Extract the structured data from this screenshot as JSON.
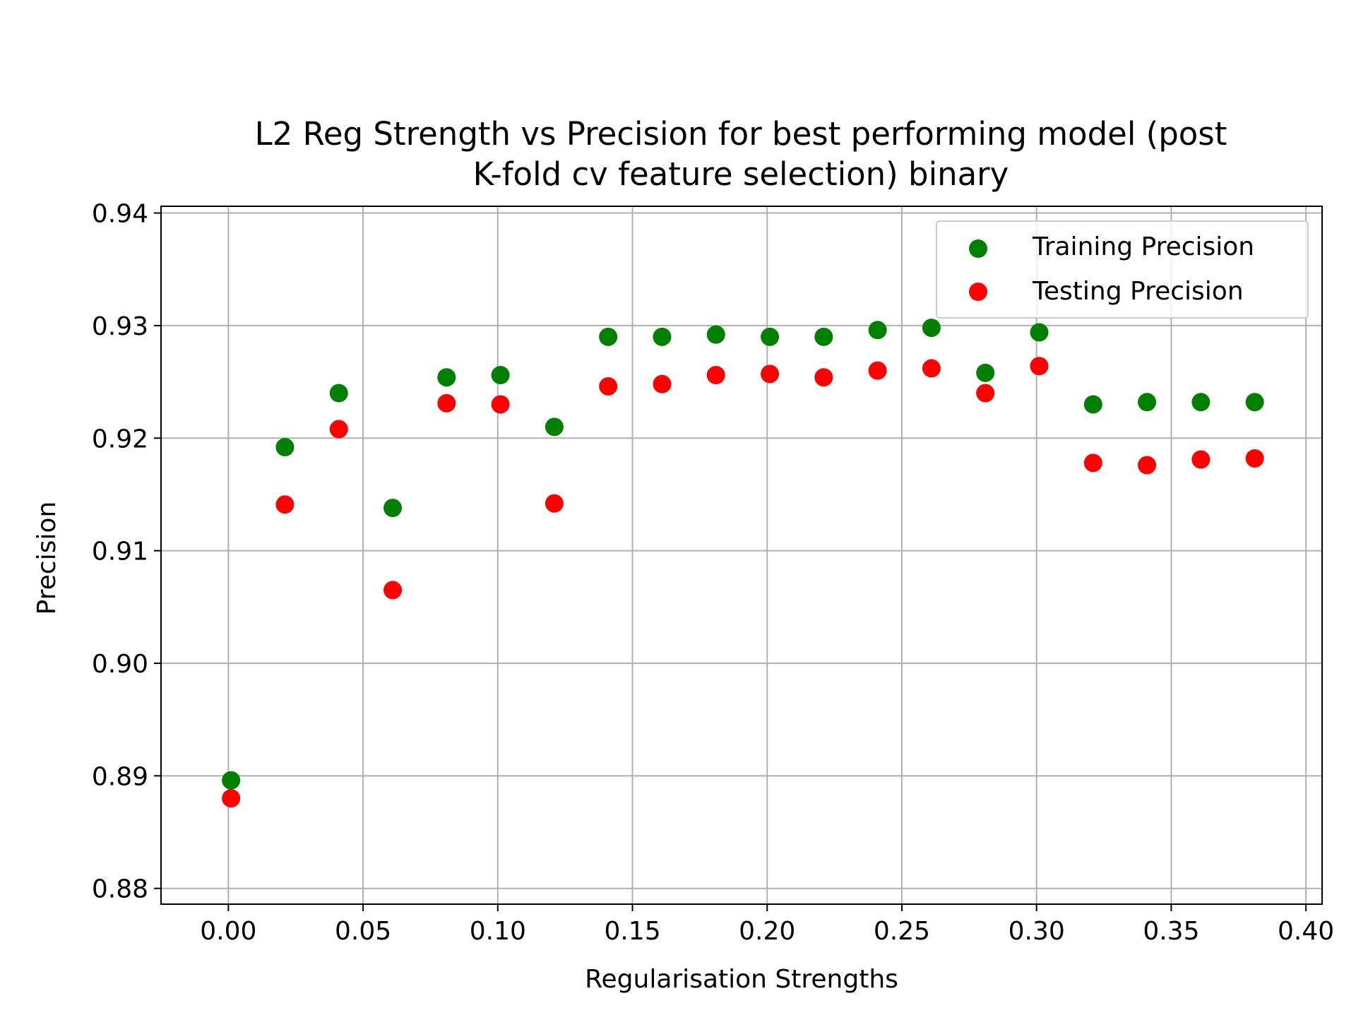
{
  "chart_data": {
    "type": "scatter",
    "title_lines": [
      "L2 Reg Strength vs Precision for best performing model (post",
      "K-fold cv feature selection) binary"
    ],
    "xlabel": "Regularisation Strengths",
    "ylabel": "Precision",
    "xlim": [
      -0.025,
      0.406
    ],
    "ylim": [
      0.8786,
      0.9406
    ],
    "xticks": [
      0.0,
      0.05,
      0.1,
      0.15,
      0.2,
      0.25,
      0.3,
      0.35,
      0.4
    ],
    "xtick_labels": [
      "0.00",
      "0.05",
      "0.10",
      "0.15",
      "0.20",
      "0.25",
      "0.30",
      "0.35",
      "0.40"
    ],
    "yticks": [
      0.88,
      0.89,
      0.9,
      0.91,
      0.92,
      0.93,
      0.94
    ],
    "ytick_labels": [
      "0.88",
      "0.89",
      "0.90",
      "0.91",
      "0.92",
      "0.93",
      "0.94"
    ],
    "grid": true,
    "legend_position": "top-right",
    "x": [
      0.001,
      0.021,
      0.041,
      0.061,
      0.081,
      0.101,
      0.121,
      0.141,
      0.161,
      0.181,
      0.201,
      0.221,
      0.241,
      0.261,
      0.281,
      0.301,
      0.321,
      0.341,
      0.361,
      0.381
    ],
    "series": [
      {
        "name": "Training Precision",
        "color": "#008000",
        "values": [
          0.8896,
          0.9192,
          0.924,
          0.9138,
          0.9254,
          0.9256,
          0.921,
          0.929,
          0.929,
          0.9292,
          0.929,
          0.929,
          0.9296,
          0.9298,
          0.9258,
          0.9294,
          0.923,
          0.9232,
          0.9232,
          0.9232
        ]
      },
      {
        "name": "Testing Precision",
        "color": "#ff0000",
        "values": [
          0.888,
          0.9141,
          0.9208,
          0.9065,
          0.9231,
          0.923,
          0.9142,
          0.9246,
          0.9248,
          0.9256,
          0.9257,
          0.9254,
          0.926,
          0.9262,
          0.924,
          0.9264,
          0.9178,
          0.9176,
          0.9181,
          0.9182
        ]
      }
    ]
  }
}
